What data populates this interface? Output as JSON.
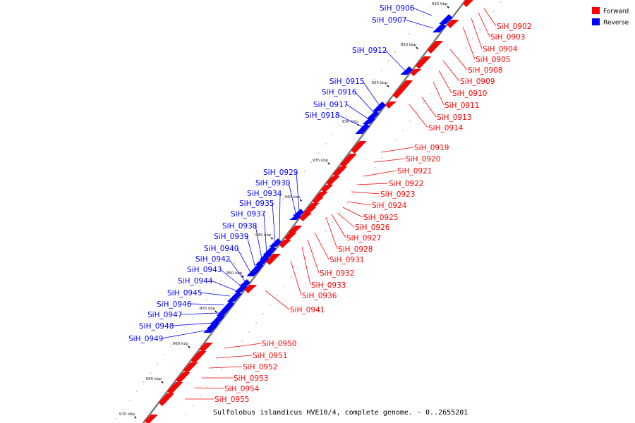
{
  "caption": "Sulfolobus islandicus HVE10/4, complete genome. - 0..2655201",
  "legend": [
    {
      "label": "Forward",
      "color": "#ff0000"
    },
    {
      "label": "Reverse",
      "color": "#0000ff"
    }
  ],
  "colors": {
    "forward": "#ff0000",
    "reverse": "#0000ff",
    "backbone": "#777777"
  },
  "ticks": [
    "915 kbp",
    "920 kbp",
    "925 kbp",
    "930 kbp",
    "935 kbp",
    "940 kbp",
    "945 kbp",
    "950 kbp",
    "955 kbp",
    "960 kbp",
    "965 kbp",
    "970 kbp"
  ],
  "genes": [
    {
      "name": "SiH_0902",
      "strand": "forward"
    },
    {
      "name": "SiH_0903",
      "strand": "forward"
    },
    {
      "name": "SiH_0904",
      "strand": "forward"
    },
    {
      "name": "SiH_0905",
      "strand": "forward"
    },
    {
      "name": "SiH_0906",
      "strand": "reverse"
    },
    {
      "name": "SiH_0907",
      "strand": "reverse"
    },
    {
      "name": "SiH_0908",
      "strand": "forward"
    },
    {
      "name": "SiH_0909",
      "strand": "forward"
    },
    {
      "name": "SiH_0910",
      "strand": "forward"
    },
    {
      "name": "SiH_0911",
      "strand": "forward"
    },
    {
      "name": "SiH_0912",
      "strand": "reverse"
    },
    {
      "name": "SiH_0913",
      "strand": "forward"
    },
    {
      "name": "SiH_0914",
      "strand": "forward"
    },
    {
      "name": "SiH_0915",
      "strand": "reverse"
    },
    {
      "name": "SiH_0916",
      "strand": "reverse"
    },
    {
      "name": "SiH_0917",
      "strand": "reverse"
    },
    {
      "name": "SiH_0918",
      "strand": "reverse"
    },
    {
      "name": "SiH_0919",
      "strand": "forward"
    },
    {
      "name": "SiH_0920",
      "strand": "forward"
    },
    {
      "name": "SiH_0921",
      "strand": "forward"
    },
    {
      "name": "SiH_0922",
      "strand": "forward"
    },
    {
      "name": "SiH_0923",
      "strand": "forward"
    },
    {
      "name": "SiH_0924",
      "strand": "forward"
    },
    {
      "name": "SiH_0925",
      "strand": "forward"
    },
    {
      "name": "SiH_0926",
      "strand": "forward"
    },
    {
      "name": "SiH_0927",
      "strand": "forward"
    },
    {
      "name": "SiH_0928",
      "strand": "forward"
    },
    {
      "name": "SiH_0929",
      "strand": "reverse"
    },
    {
      "name": "SiH_0930",
      "strand": "reverse"
    },
    {
      "name": "SiH_0931",
      "strand": "forward"
    },
    {
      "name": "SiH_0932",
      "strand": "forward"
    },
    {
      "name": "SiH_0933",
      "strand": "forward"
    },
    {
      "name": "SiH_0934",
      "strand": "reverse"
    },
    {
      "name": "SiH_0935",
      "strand": "reverse"
    },
    {
      "name": "SiH_0936",
      "strand": "forward"
    },
    {
      "name": "SiH_0937",
      "strand": "reverse"
    },
    {
      "name": "SiH_0938",
      "strand": "reverse"
    },
    {
      "name": "SiH_0939",
      "strand": "reverse"
    },
    {
      "name": "SiH_0940",
      "strand": "reverse"
    },
    {
      "name": "SiH_0941",
      "strand": "forward"
    },
    {
      "name": "SiH_0942",
      "strand": "reverse"
    },
    {
      "name": "SiH_0943",
      "strand": "reverse"
    },
    {
      "name": "SiH_0944",
      "strand": "reverse"
    },
    {
      "name": "SiH_0945",
      "strand": "reverse"
    },
    {
      "name": "SiH_0946",
      "strand": "reverse"
    },
    {
      "name": "SiH_0947",
      "strand": "reverse"
    },
    {
      "name": "SiH_0948",
      "strand": "reverse"
    },
    {
      "name": "SiH_0949",
      "strand": "reverse"
    },
    {
      "name": "SiH_0950",
      "strand": "forward"
    },
    {
      "name": "SiH_0951",
      "strand": "forward"
    },
    {
      "name": "SiH_0952",
      "strand": "forward"
    },
    {
      "name": "SiH_0953",
      "strand": "forward"
    },
    {
      "name": "SiH_0954",
      "strand": "forward"
    },
    {
      "name": "SiH_0955",
      "strand": "forward"
    }
  ]
}
